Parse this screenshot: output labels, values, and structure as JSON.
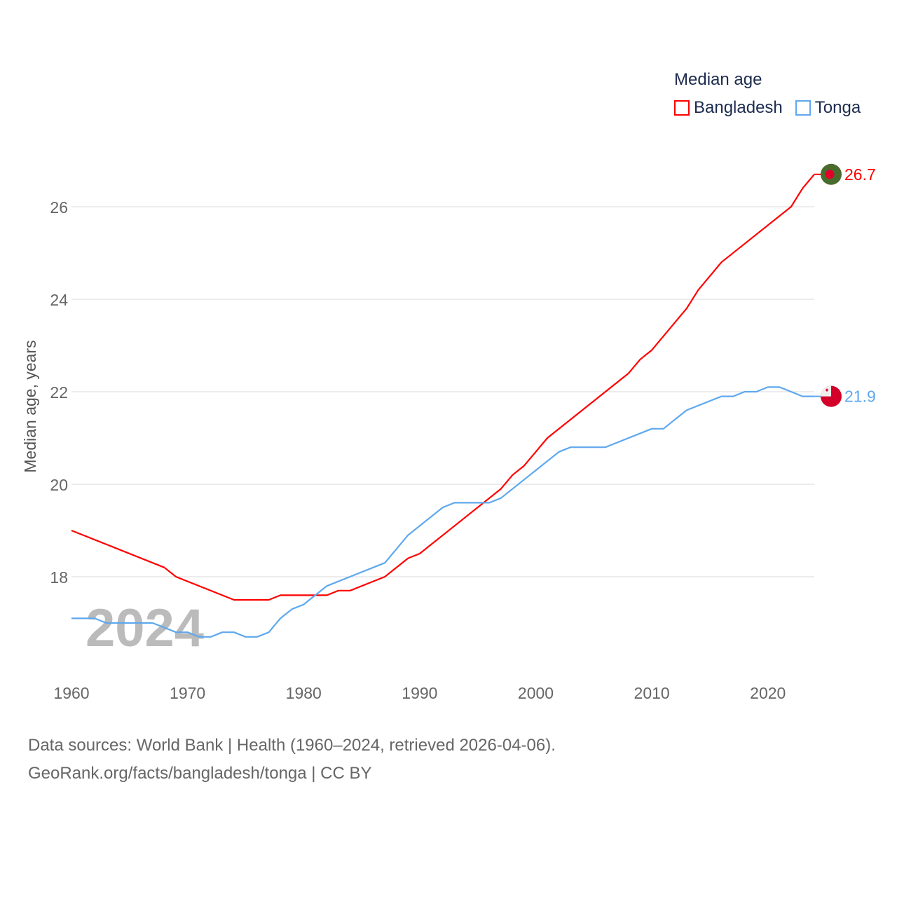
{
  "chart_data": {
    "type": "line",
    "title": "Median age",
    "ylabel": "Median age, years",
    "xlabel": "",
    "xlim": [
      1960,
      2024
    ],
    "ylim": [
      16.3,
      27
    ],
    "x_ticks": [
      "1960",
      "1970",
      "1980",
      "1990",
      "2000",
      "2010",
      "2020"
    ],
    "y_ticks": [
      "18",
      "20",
      "22",
      "24",
      "26"
    ],
    "grid": true,
    "legend_position": "top-right",
    "watermark_year": "2024",
    "series": [
      {
        "name": "Bangladesh",
        "color": "#ff0000",
        "end_label": "26.7",
        "flag": "bangladesh-flag",
        "x": [
          1960,
          1968,
          1969,
          1974,
          1977,
          1978,
          1982,
          1983,
          1984,
          1987,
          1989,
          1990,
          1997,
          1998,
          1999,
          2001,
          2008,
          2009,
          2010,
          2013,
          2014,
          2016,
          2022,
          2023,
          2024
        ],
        "y": [
          19.0,
          18.2,
          18.0,
          17.5,
          17.5,
          17.6,
          17.6,
          17.7,
          17.7,
          18.0,
          18.4,
          18.5,
          19.9,
          20.2,
          20.4,
          21.0,
          22.4,
          22.7,
          22.9,
          23.8,
          24.2,
          24.8,
          26.0,
          26.4,
          26.7
        ]
      },
      {
        "name": "Tonga",
        "color": "#5ea8ee",
        "end_label": "21.9",
        "flag": "tonga-flag",
        "x": [
          1960,
          1962,
          1963,
          1967,
          1969,
          1970,
          1971,
          1972,
          1973,
          1974,
          1975,
          1976,
          1977,
          1978,
          1979,
          1980,
          1981,
          1982,
          1987,
          1989,
          1992,
          1993,
          1996,
          1997,
          2002,
          2003,
          2006,
          2010,
          2011,
          2013,
          2016,
          2017,
          2018,
          2019,
          2020,
          2021,
          2023,
          2024
        ],
        "y": [
          17.1,
          17.1,
          17.0,
          17.0,
          16.8,
          16.8,
          16.7,
          16.7,
          16.8,
          16.8,
          16.7,
          16.7,
          16.8,
          17.1,
          17.3,
          17.4,
          17.6,
          17.8,
          18.3,
          18.9,
          19.5,
          19.6,
          19.6,
          19.7,
          20.7,
          20.8,
          20.8,
          21.2,
          21.2,
          21.6,
          21.9,
          21.9,
          22.0,
          22.0,
          22.1,
          22.1,
          21.9,
          21.9
        ]
      }
    ]
  },
  "legend": {
    "title": "Median age",
    "items": [
      "Bangladesh",
      "Tonga"
    ]
  },
  "footer": {
    "line1": "Data sources: World Bank | Health (1960–2024, retrieved 2026-04-06).",
    "line2": "GeoRank.org/facts/bangladesh/tonga | CC BY"
  }
}
